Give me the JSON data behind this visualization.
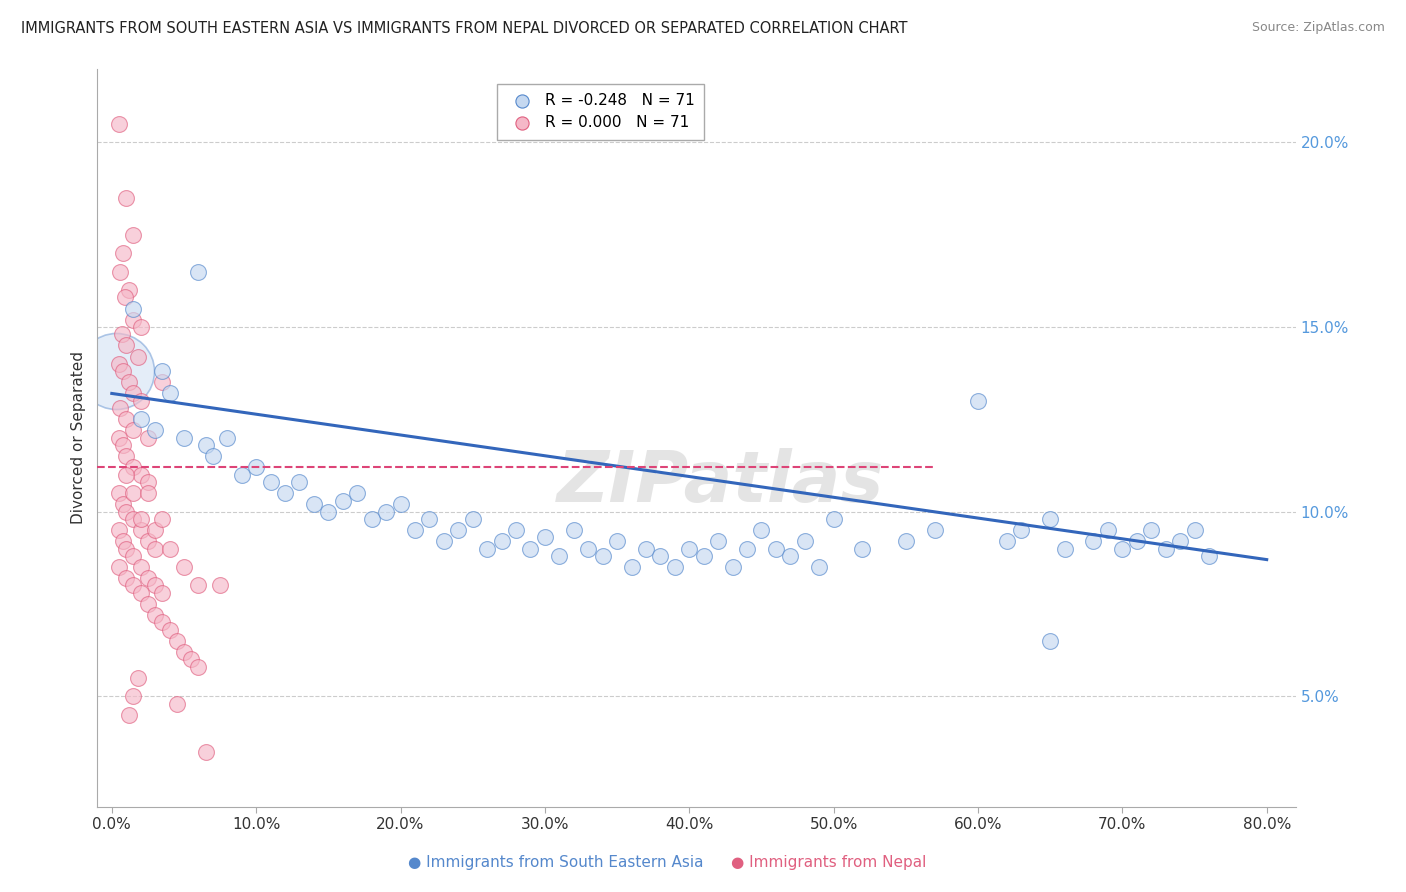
{
  "title": "IMMIGRANTS FROM SOUTH EASTERN ASIA VS IMMIGRANTS FROM NEPAL DIVORCED OR SEPARATED CORRELATION CHART",
  "source": "Source: ZipAtlas.com",
  "ylabel": "Divorced or Separated",
  "legend_blue_r": "R = -0.248",
  "legend_blue_n": "N = 71",
  "legend_pink_r": "R = 0.000",
  "legend_pink_n": "N = 71",
  "blue_fill": "#c5d8f0",
  "blue_edge": "#5588cc",
  "pink_fill": "#f5b8c8",
  "pink_edge": "#e06080",
  "blue_line_color": "#3366bb",
  "pink_line_color": "#dd4477",
  "grid_color": "#cccccc",
  "background_color": "#ffffff",
  "ytick_color": "#5599dd",
  "blue_scatter": [
    [
      1.5,
      15.5
    ],
    [
      6.0,
      16.5
    ],
    [
      3.5,
      13.8
    ],
    [
      2.0,
      12.5
    ],
    [
      4.0,
      13.2
    ],
    [
      5.0,
      12.0
    ],
    [
      3.0,
      12.2
    ],
    [
      6.5,
      11.8
    ],
    [
      7.0,
      11.5
    ],
    [
      8.0,
      12.0
    ],
    [
      9.0,
      11.0
    ],
    [
      10.0,
      11.2
    ],
    [
      11.0,
      10.8
    ],
    [
      12.0,
      10.5
    ],
    [
      13.0,
      10.8
    ],
    [
      14.0,
      10.2
    ],
    [
      15.0,
      10.0
    ],
    [
      16.0,
      10.3
    ],
    [
      17.0,
      10.5
    ],
    [
      18.0,
      9.8
    ],
    [
      19.0,
      10.0
    ],
    [
      20.0,
      10.2
    ],
    [
      21.0,
      9.5
    ],
    [
      22.0,
      9.8
    ],
    [
      23.0,
      9.2
    ],
    [
      24.0,
      9.5
    ],
    [
      25.0,
      9.8
    ],
    [
      26.0,
      9.0
    ],
    [
      27.0,
      9.2
    ],
    [
      28.0,
      9.5
    ],
    [
      29.0,
      9.0
    ],
    [
      30.0,
      9.3
    ],
    [
      31.0,
      8.8
    ],
    [
      32.0,
      9.5
    ],
    [
      33.0,
      9.0
    ],
    [
      34.0,
      8.8
    ],
    [
      35.0,
      9.2
    ],
    [
      36.0,
      8.5
    ],
    [
      37.0,
      9.0
    ],
    [
      38.0,
      8.8
    ],
    [
      39.0,
      8.5
    ],
    [
      40.0,
      9.0
    ],
    [
      41.0,
      8.8
    ],
    [
      42.0,
      9.2
    ],
    [
      43.0,
      8.5
    ],
    [
      44.0,
      9.0
    ],
    [
      45.0,
      9.5
    ],
    [
      46.0,
      9.0
    ],
    [
      47.0,
      8.8
    ],
    [
      48.0,
      9.2
    ],
    [
      49.0,
      8.5
    ],
    [
      50.0,
      9.8
    ],
    [
      52.0,
      9.0
    ],
    [
      55.0,
      9.2
    ],
    [
      57.0,
      9.5
    ],
    [
      60.0,
      13.0
    ],
    [
      62.0,
      9.2
    ],
    [
      63.0,
      9.5
    ],
    [
      65.0,
      9.8
    ],
    [
      66.0,
      9.0
    ],
    [
      68.0,
      9.2
    ],
    [
      69.0,
      9.5
    ],
    [
      70.0,
      9.0
    ],
    [
      71.0,
      9.2
    ],
    [
      72.0,
      9.5
    ],
    [
      73.0,
      9.0
    ],
    [
      74.0,
      9.2
    ],
    [
      75.0,
      9.5
    ],
    [
      76.0,
      8.8
    ],
    [
      65.0,
      6.5
    ]
  ],
  "pink_scatter": [
    [
      0.5,
      20.5
    ],
    [
      1.0,
      18.5
    ],
    [
      1.5,
      17.5
    ],
    [
      0.8,
      17.0
    ],
    [
      1.2,
      16.0
    ],
    [
      0.6,
      16.5
    ],
    [
      0.9,
      15.8
    ],
    [
      1.5,
      15.2
    ],
    [
      2.0,
      15.0
    ],
    [
      0.7,
      14.8
    ],
    [
      1.0,
      14.5
    ],
    [
      1.8,
      14.2
    ],
    [
      0.5,
      14.0
    ],
    [
      0.8,
      13.8
    ],
    [
      1.2,
      13.5
    ],
    [
      1.5,
      13.2
    ],
    [
      2.0,
      13.0
    ],
    [
      0.6,
      12.8
    ],
    [
      1.0,
      12.5
    ],
    [
      1.5,
      12.2
    ],
    [
      2.5,
      12.0
    ],
    [
      0.5,
      12.0
    ],
    [
      0.8,
      11.8
    ],
    [
      1.0,
      11.5
    ],
    [
      1.5,
      11.2
    ],
    [
      2.0,
      11.0
    ],
    [
      2.5,
      10.8
    ],
    [
      0.5,
      10.5
    ],
    [
      0.8,
      10.2
    ],
    [
      1.0,
      10.0
    ],
    [
      1.5,
      9.8
    ],
    [
      2.0,
      9.5
    ],
    [
      2.5,
      9.2
    ],
    [
      3.0,
      9.0
    ],
    [
      0.5,
      9.5
    ],
    [
      0.8,
      9.2
    ],
    [
      1.0,
      9.0
    ],
    [
      1.5,
      8.8
    ],
    [
      2.0,
      8.5
    ],
    [
      2.5,
      8.2
    ],
    [
      3.0,
      8.0
    ],
    [
      3.5,
      7.8
    ],
    [
      0.5,
      8.5
    ],
    [
      1.0,
      8.2
    ],
    [
      1.5,
      8.0
    ],
    [
      2.0,
      7.8
    ],
    [
      2.5,
      7.5
    ],
    [
      3.0,
      7.2
    ],
    [
      3.5,
      7.0
    ],
    [
      4.0,
      6.8
    ],
    [
      4.5,
      6.5
    ],
    [
      5.0,
      6.2
    ],
    [
      5.5,
      6.0
    ],
    [
      6.0,
      5.8
    ],
    [
      2.0,
      9.8
    ],
    [
      3.0,
      9.5
    ],
    [
      1.5,
      10.5
    ],
    [
      1.0,
      11.0
    ],
    [
      2.5,
      10.5
    ],
    [
      3.5,
      9.8
    ],
    [
      4.0,
      9.0
    ],
    [
      5.0,
      8.5
    ],
    [
      6.0,
      8.0
    ],
    [
      3.5,
      13.5
    ],
    [
      7.5,
      8.0
    ],
    [
      1.5,
      5.0
    ],
    [
      1.8,
      5.5
    ],
    [
      1.2,
      4.5
    ],
    [
      4.5,
      4.8
    ],
    [
      6.5,
      3.5
    ]
  ],
  "blue_trend": [
    0,
    80,
    13.2,
    8.7
  ],
  "pink_trend_y": 11.2,
  "big_blue_x": 0.3,
  "big_blue_y": 13.8,
  "big_blue_size": 3000,
  "yticks": [
    5.0,
    10.0,
    15.0,
    20.0
  ],
  "ytick_labels": [
    "5.0%",
    "10.0%",
    "15.0%",
    "20.0%"
  ],
  "xticks": [
    0,
    10,
    20,
    30,
    40,
    50,
    60,
    70,
    80
  ],
  "xtick_labels": [
    "0.0%",
    "10.0%",
    "20.0%",
    "30.0%",
    "40.0%",
    "50.0%",
    "60.0%",
    "70.0%",
    "80.0%"
  ],
  "xlim": [
    -1,
    82
  ],
  "ylim": [
    2,
    22
  ],
  "dot_size": 130,
  "dot_alpha": 0.65
}
